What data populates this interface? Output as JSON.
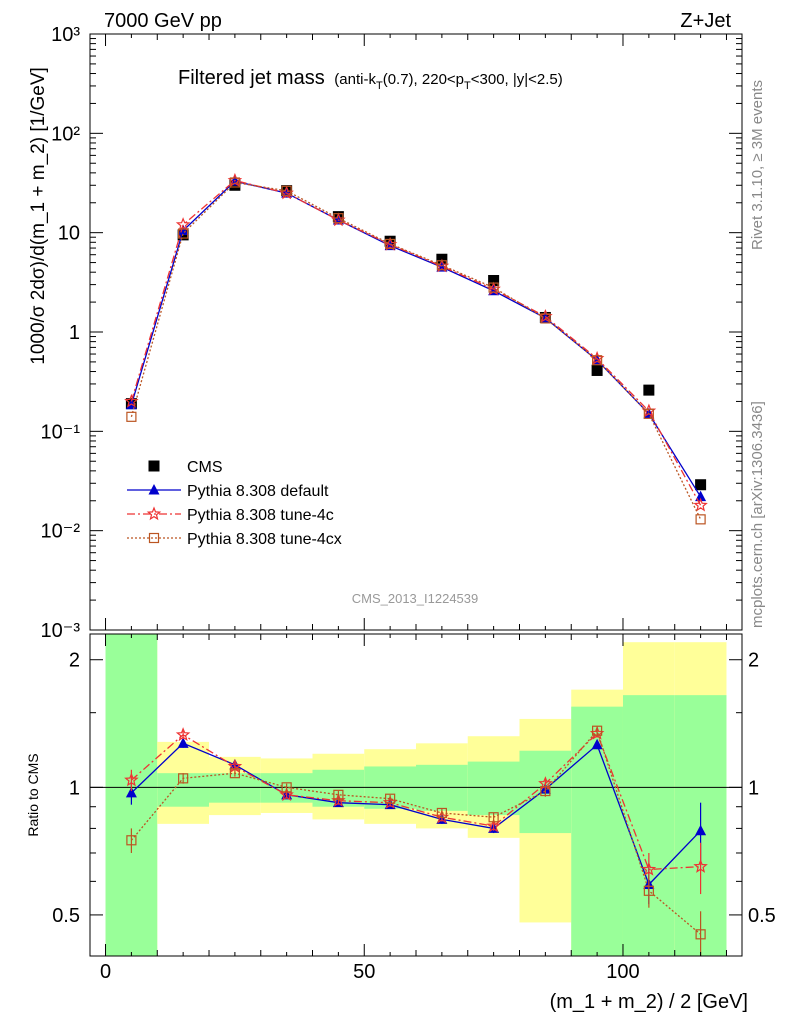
{
  "header": {
    "left": "7000 GeV pp",
    "right": "Z+Jet"
  },
  "title": {
    "main": "Filtered jet mass",
    "sub_prefix": "(anti-k",
    "sub_k_sub": "T",
    "sub_mid": "(0.7), 220<p",
    "sub_p_sub": "T",
    "sub_suffix": "<300, |y|<2.5)"
  },
  "side_labels": {
    "rivet": "Rivet 3.1.10, ≥ 3M events",
    "mcplots": "mcplots.cern.ch [arXiv:1306.3436]"
  },
  "watermark": "CMS_2013_I1224539",
  "colors": {
    "cms": "#000000",
    "default": "#0000cc",
    "tune4c": "#ee3333",
    "tune4cx": "#bb5522",
    "band_green": "#99ff99",
    "band_yellow": "#ffff99"
  },
  "chart_data": [
    {
      "type": "scatter",
      "panel": "main",
      "ylabel": "1000/σ 2dσ)/d(m_1 + m_2) [1/GeV]",
      "yscale": "log",
      "ylim": [
        0.001,
        1000
      ],
      "xlim": [
        -3,
        123
      ],
      "y_tick_labels": [
        "10⁻³",
        "10⁻²",
        "10⁻¹",
        "1",
        "10",
        "10²",
        "10³"
      ],
      "x": [
        5,
        15,
        25,
        35,
        45,
        55,
        65,
        75,
        85,
        95,
        105,
        115
      ],
      "legend": {
        "position": "bottom-left",
        "entries": [
          "CMS",
          "Pythia 8.308 default",
          "Pythia 8.308 tune-4c",
          "Pythia 8.308 tune-4cx"
        ]
      },
      "series": [
        {
          "name": "CMS",
          "style": "square",
          "values": [
            0.19,
            9.5,
            30,
            26.5,
            14.5,
            8.2,
            5.4,
            3.3,
            1.4,
            0.41,
            0.26,
            0.029
          ]
        },
        {
          "name": "Pythia 8.308 default",
          "style": "solid-triangle",
          "values": [
            0.185,
            10.5,
            33,
            25,
            13.4,
            7.4,
            4.5,
            2.6,
            1.38,
            0.52,
            0.15,
            0.022
          ]
        },
        {
          "name": "Pythia 8.308 tune-4c",
          "style": "dashdot-star",
          "values": [
            0.2,
            12,
            33.5,
            25,
            13.4,
            7.6,
            4.6,
            2.7,
            1.43,
            0.54,
            0.16,
            0.018
          ]
        },
        {
          "name": "Pythia 8.308 tune-4cx",
          "style": "dotted-open-square",
          "values": [
            0.14,
            9.8,
            32,
            26.4,
            14,
            7.7,
            4.7,
            2.8,
            1.37,
            0.52,
            0.15,
            0.013
          ]
        }
      ]
    },
    {
      "type": "scatter",
      "panel": "ratio",
      "ylabel": "Ratio to CMS",
      "xlabel": "(m_1 + m_2) / 2 [GeV]",
      "yscale": "log",
      "ylim": [
        0.4,
        2.3
      ],
      "xlim": [
        -3,
        123
      ],
      "y_tick_labels": [
        "0.5",
        "1",
        "2"
      ],
      "x_tick_labels": [
        "0",
        "50",
        "100"
      ],
      "bands": {
        "x_low": [
          0,
          10,
          20,
          30,
          40,
          50,
          60,
          70,
          80,
          90,
          100,
          110
        ],
        "x_high": [
          10,
          20,
          30,
          40,
          50,
          60,
          70,
          80,
          90,
          100,
          110,
          120
        ],
        "green_low": [
          0.35,
          0.9,
          0.92,
          0.92,
          0.9,
          0.89,
          0.88,
          0.86,
          0.78,
          0.35,
          0.35,
          0.35
        ],
        "green_high": [
          2.3,
          1.08,
          1.08,
          1.08,
          1.1,
          1.12,
          1.13,
          1.15,
          1.22,
          1.55,
          1.65,
          1.65
        ],
        "yellow_low": [
          0.35,
          0.82,
          0.86,
          0.87,
          0.84,
          0.82,
          0.8,
          0.76,
          0.48,
          0.35,
          0.35,
          0.35
        ],
        "yellow_high": [
          2.3,
          1.28,
          1.18,
          1.17,
          1.2,
          1.23,
          1.27,
          1.32,
          1.45,
          1.7,
          2.2,
          2.2
        ]
      },
      "x": [
        5,
        15,
        25,
        35,
        45,
        55,
        65,
        75,
        85,
        95,
        105,
        115
      ],
      "series": [
        {
          "name": "Pythia 8.308 default",
          "values": [
            0.97,
            1.27,
            1.13,
            0.96,
            0.92,
            0.91,
            0.84,
            0.8,
            0.99,
            1.26,
            0.59,
            0.79
          ],
          "err": [
            0.06,
            0.03,
            0.02,
            0.02,
            0.02,
            0.02,
            0.02,
            0.02,
            0.03,
            0.03,
            0.06,
            0.13
          ]
        },
        {
          "name": "Pythia 8.308 tune-4c",
          "values": [
            1.04,
            1.33,
            1.12,
            0.96,
            0.93,
            0.92,
            0.85,
            0.81,
            1.02,
            1.34,
            0.64,
            0.65
          ],
          "err": [
            0.06,
            0.03,
            0.02,
            0.02,
            0.02,
            0.02,
            0.02,
            0.02,
            0.03,
            0.03,
            0.06,
            0.09
          ]
        },
        {
          "name": "Pythia 8.308 tune-4cx",
          "values": [
            0.75,
            1.05,
            1.08,
            1.0,
            0.96,
            0.94,
            0.87,
            0.85,
            0.98,
            1.36,
            0.57,
            0.45
          ],
          "err": [
            0.05,
            0.03,
            0.02,
            0.02,
            0.02,
            0.02,
            0.02,
            0.02,
            0.03,
            0.03,
            0.05,
            0.06
          ]
        }
      ]
    }
  ]
}
